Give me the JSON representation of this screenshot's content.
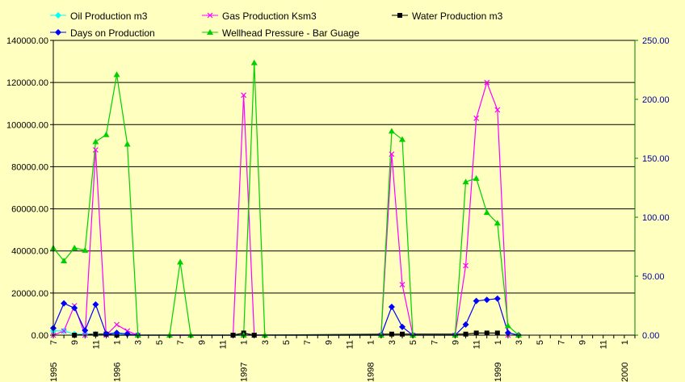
{
  "chart_data": {
    "type": "line",
    "title": "",
    "xlabel": "",
    "ylabel": "",
    "ylim": [
      0,
      140000
    ],
    "y2lim": [
      0,
      250
    ],
    "grid": true,
    "legend_position": "top",
    "y_ticks": [
      "0.00",
      "20000.00",
      "40000.00",
      "60000.00",
      "80000.00",
      "100000.00",
      "120000.00",
      "140000.00"
    ],
    "y2_ticks": [
      "0.00",
      "50.00",
      "100.00",
      "150.00",
      "200.00",
      "250.00"
    ],
    "x_ticks": [
      {
        "i": 0,
        "label": "7",
        "year": "1995"
      },
      {
        "i": 2,
        "label": "9"
      },
      {
        "i": 4,
        "label": "11"
      },
      {
        "i": 6,
        "label": "1",
        "year": "1996"
      },
      {
        "i": 8,
        "label": "3"
      },
      {
        "i": 10,
        "label": "5"
      },
      {
        "i": 12,
        "label": "7"
      },
      {
        "i": 14,
        "label": "9"
      },
      {
        "i": 16,
        "label": "11"
      },
      {
        "i": 18,
        "label": "1",
        "year": "1997"
      },
      {
        "i": 20,
        "label": "3"
      },
      {
        "i": 22,
        "label": "5"
      },
      {
        "i": 24,
        "label": "7"
      },
      {
        "i": 26,
        "label": "9"
      },
      {
        "i": 28,
        "label": "11"
      },
      {
        "i": 30,
        "label": "1",
        "year": "1998"
      },
      {
        "i": 32,
        "label": "3"
      },
      {
        "i": 34,
        "label": "5"
      },
      {
        "i": 36,
        "label": "7"
      },
      {
        "i": 38,
        "label": "9"
      },
      {
        "i": 40,
        "label": "11"
      },
      {
        "i": 42,
        "label": "1",
        "year": "1999"
      },
      {
        "i": 44,
        "label": "3"
      },
      {
        "i": 46,
        "label": "5"
      },
      {
        "i": 48,
        "label": "7"
      },
      {
        "i": 50,
        "label": "9"
      },
      {
        "i": 52,
        "label": "11"
      },
      {
        "i": 54,
        "label": "1",
        "year": "2000"
      }
    ],
    "series": [
      {
        "name": "Oil Production m3",
        "axis": "left",
        "color": "#00ffff",
        "marker": "diamond",
        "points": [
          [
            0,
            2000
          ],
          [
            1,
            2000
          ],
          [
            2,
            500
          ],
          [
            3,
            500
          ],
          [
            4,
            500
          ],
          [
            5,
            500
          ],
          [
            6,
            500
          ],
          [
            7,
            500
          ],
          [
            8,
            0
          ]
        ]
      },
      {
        "name": "Gas Production Ksm3",
        "axis": "left",
        "color": "#ff00ff",
        "marker": "x",
        "points": [
          [
            0,
            0
          ],
          [
            1,
            2000
          ],
          [
            2,
            14000
          ],
          [
            3,
            0
          ],
          [
            4,
            88000
          ],
          [
            5,
            0
          ],
          [
            6,
            5000
          ],
          [
            7,
            2000
          ],
          [
            8,
            0
          ],
          [
            17,
            0
          ],
          [
            18,
            114000
          ],
          [
            19,
            0
          ],
          [
            31,
            0
          ],
          [
            32,
            86000
          ],
          [
            33,
            24000
          ],
          [
            34,
            0
          ],
          [
            38,
            0
          ],
          [
            39,
            33000
          ],
          [
            40,
            103000
          ],
          [
            41,
            120000
          ],
          [
            42,
            107000
          ],
          [
            43,
            0
          ]
        ]
      },
      {
        "name": "Water Production m3",
        "axis": "left",
        "color": "#000000",
        "marker": "square",
        "points": [
          [
            2,
            0
          ],
          [
            4,
            500
          ],
          [
            5,
            500
          ],
          [
            6,
            0
          ],
          [
            17,
            0
          ],
          [
            18,
            1000
          ],
          [
            19,
            0
          ],
          [
            32,
            500
          ],
          [
            33,
            500
          ],
          [
            39,
            500
          ],
          [
            40,
            1000
          ],
          [
            41,
            1000
          ],
          [
            42,
            1000
          ]
        ]
      },
      {
        "name": "Days on Production",
        "axis": "right",
        "color": "#0000ff",
        "marker": "diamond",
        "points": [
          [
            0,
            6
          ],
          [
            1,
            27
          ],
          [
            2,
            23
          ],
          [
            3,
            4
          ],
          [
            4,
            26
          ],
          [
            5,
            1
          ],
          [
            6,
            2
          ],
          [
            7,
            1
          ],
          [
            8,
            0
          ],
          [
            31,
            0
          ],
          [
            32,
            24
          ],
          [
            33,
            7
          ],
          [
            34,
            0
          ],
          [
            38,
            0
          ],
          [
            39,
            9
          ],
          [
            40,
            29
          ],
          [
            41,
            30
          ],
          [
            42,
            31
          ],
          [
            43,
            2
          ],
          [
            44,
            0
          ]
        ]
      },
      {
        "name": "Wellhead Pressure - Bar Guage",
        "axis": "right",
        "color": "#00d000",
        "marker": "triangle",
        "points": [
          [
            0,
            74
          ],
          [
            1,
            63
          ],
          [
            2,
            74
          ],
          [
            3,
            72
          ],
          [
            4,
            164
          ],
          [
            5,
            170
          ],
          [
            6,
            221
          ],
          [
            7,
            162
          ],
          [
            8,
            0
          ],
          [
            11,
            0
          ],
          [
            12,
            62
          ],
          [
            13,
            0
          ],
          [
            18,
            0
          ],
          [
            19,
            231
          ],
          [
            20,
            0
          ],
          [
            31,
            0
          ],
          [
            32,
            173
          ],
          [
            33,
            166
          ],
          [
            34,
            0
          ],
          [
            38,
            0
          ],
          [
            39,
            130
          ],
          [
            40,
            133
          ],
          [
            41,
            104
          ],
          [
            42,
            95
          ],
          [
            43,
            8
          ],
          [
            44,
            0
          ]
        ]
      }
    ]
  },
  "legend": [
    {
      "label": "Oil Production m3"
    },
    {
      "label": "Gas Production Ksm3"
    },
    {
      "label": "Water Production m3"
    },
    {
      "label": "Days on Production"
    },
    {
      "label": "Wellhead Pressure - Bar Guage"
    }
  ]
}
